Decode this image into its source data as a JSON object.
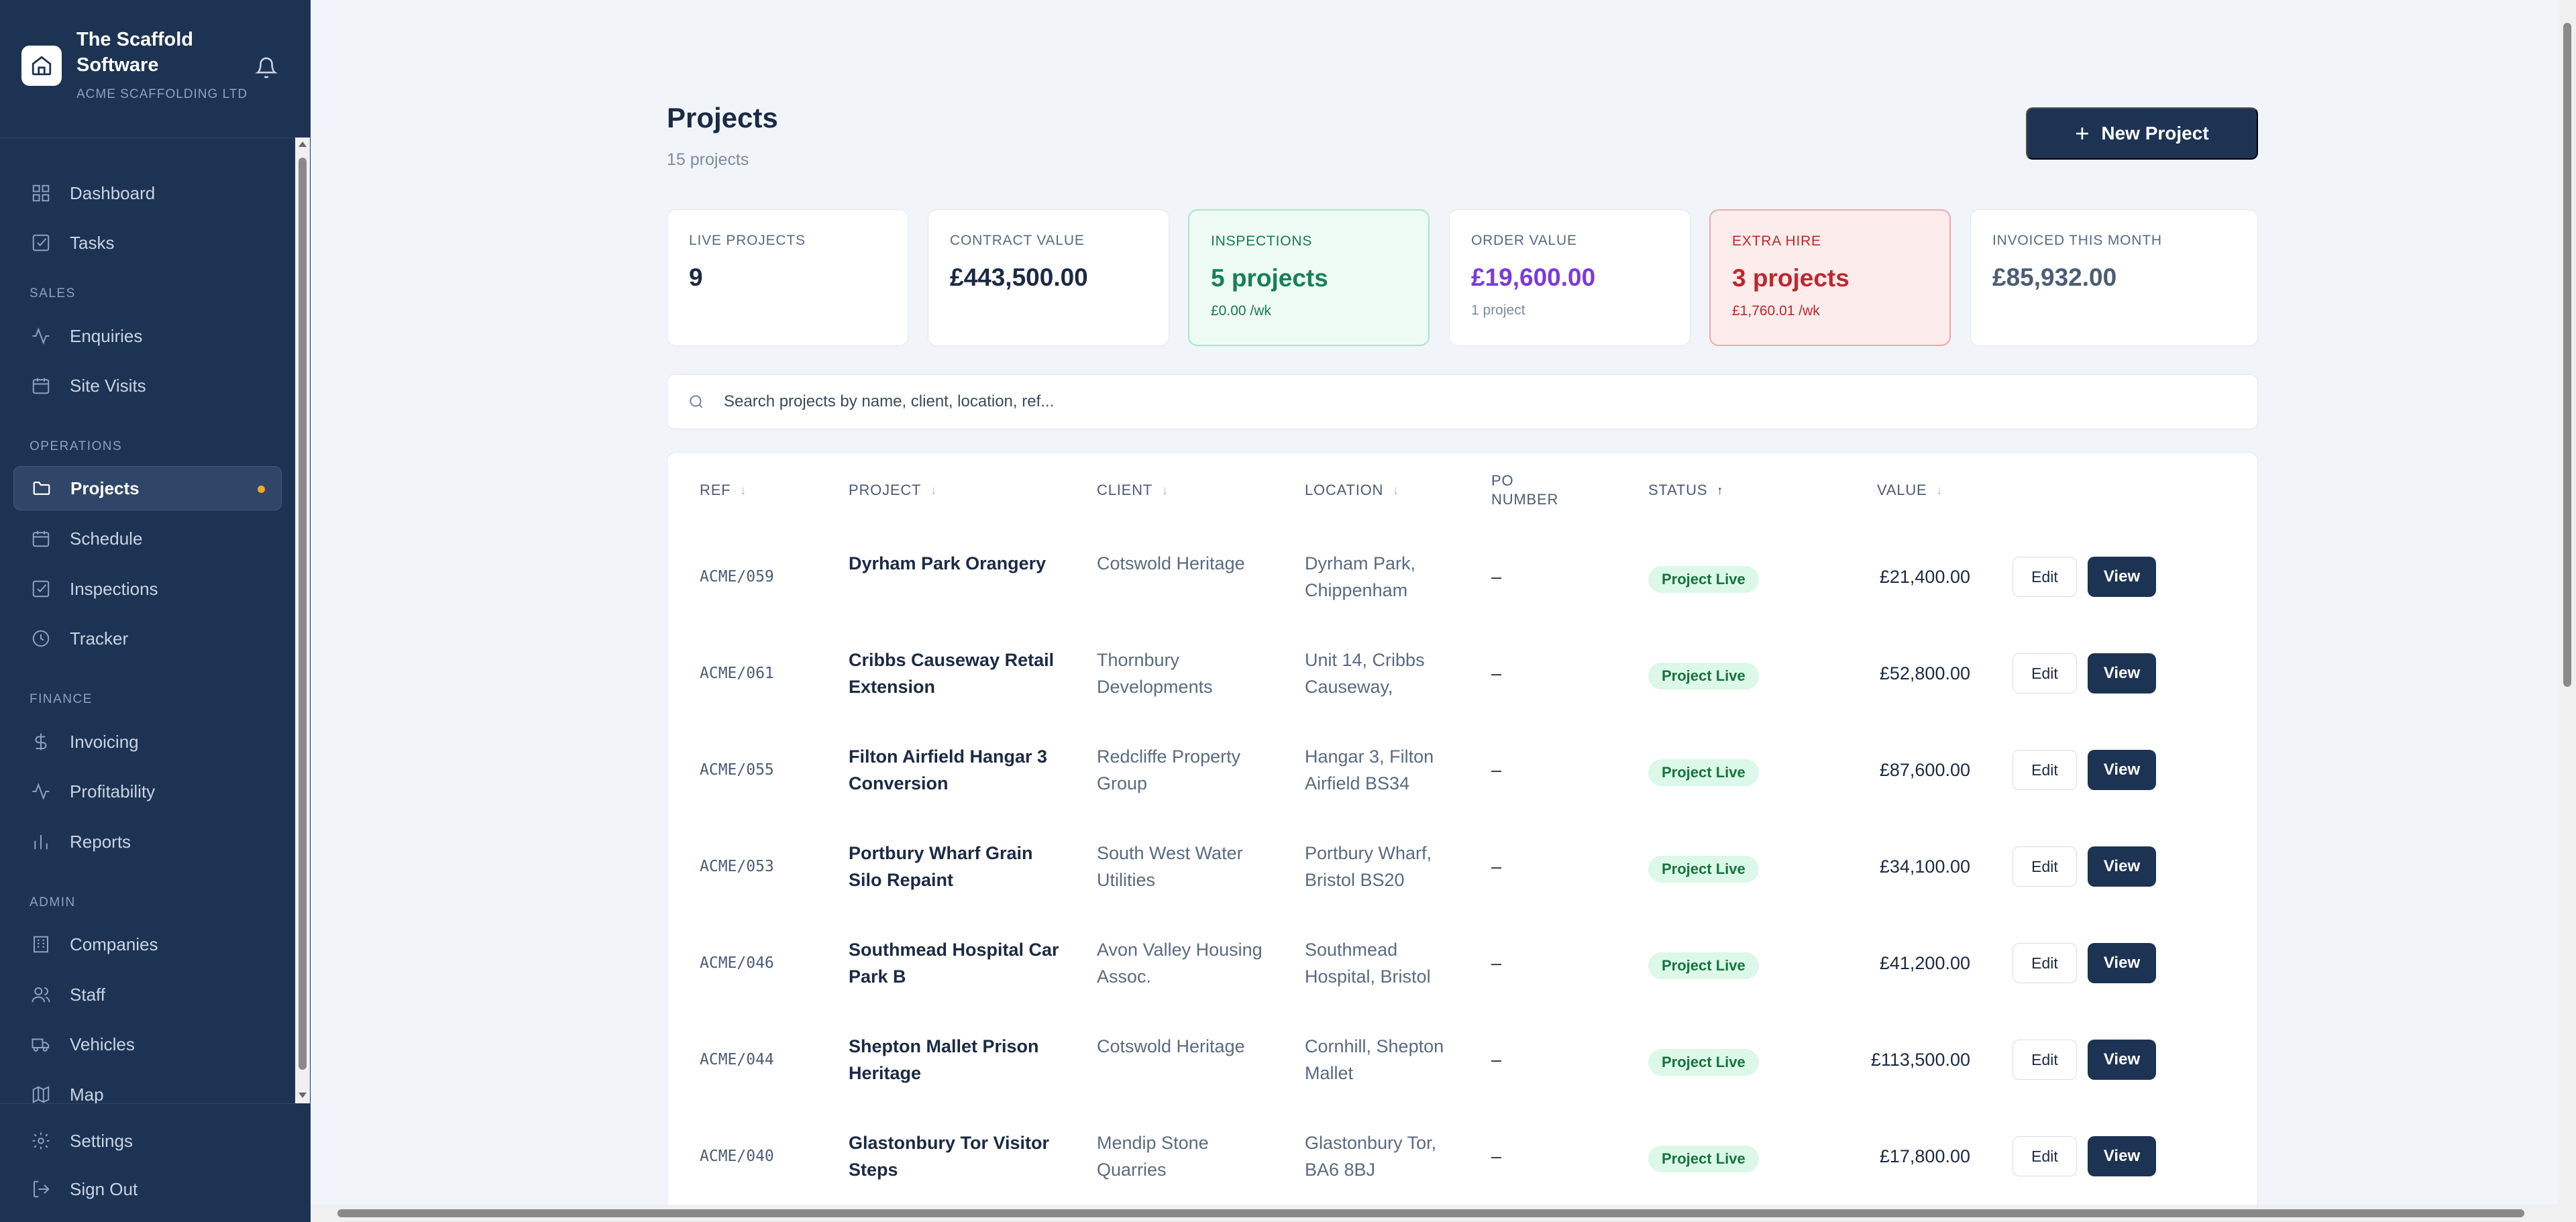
{
  "brand": {
    "name": "The Scaffold Software",
    "company": "ACME SCAFFOLDING LTD"
  },
  "sidebar": {
    "top": [
      {
        "label": "Dashboard",
        "icon": "grid-icon"
      },
      {
        "label": "Tasks",
        "icon": "checkbox-icon"
      }
    ],
    "sections": {
      "sales": "SALES",
      "operations": "OPERATIONS",
      "finance": "FINANCE",
      "admin": "ADMIN"
    },
    "sales": [
      {
        "label": "Enquiries",
        "icon": "activity-icon"
      },
      {
        "label": "Site Visits",
        "icon": "calendar-icon"
      }
    ],
    "operations": [
      {
        "label": "Projects",
        "icon": "folder-icon",
        "active": true
      },
      {
        "label": "Schedule",
        "icon": "calendar-icon"
      },
      {
        "label": "Inspections",
        "icon": "checkbox-icon"
      },
      {
        "label": "Tracker",
        "icon": "clock-icon"
      }
    ],
    "finance": [
      {
        "label": "Invoicing",
        "icon": "dollar-icon"
      },
      {
        "label": "Profitability",
        "icon": "activity-icon"
      },
      {
        "label": "Reports",
        "icon": "bar-chart-icon"
      }
    ],
    "admin": [
      {
        "label": "Companies",
        "icon": "building-icon"
      },
      {
        "label": "Staff",
        "icon": "users-icon"
      },
      {
        "label": "Vehicles",
        "icon": "truck-icon"
      },
      {
        "label": "Map",
        "icon": "map-icon"
      }
    ],
    "footer": [
      {
        "label": "Settings",
        "icon": "gear-icon"
      },
      {
        "label": "Sign Out",
        "icon": "logout-icon"
      }
    ]
  },
  "header": {
    "title": "Projects",
    "subtitle": "15 projects",
    "new_button": "New Project"
  },
  "stats": [
    {
      "label": "LIVE PROJECTS",
      "value": "9",
      "sub": ""
    },
    {
      "label": "CONTRACT VALUE",
      "value": "£443,500.00",
      "sub": ""
    },
    {
      "label": "INSPECTIONS",
      "value": "5 projects",
      "sub": "£0.00 /wk"
    },
    {
      "label": "ORDER VALUE",
      "value": "£19,600.00",
      "sub": "1 project"
    },
    {
      "label": "EXTRA HIRE",
      "value": "3 projects",
      "sub": "£1,760.01 /wk"
    },
    {
      "label": "INVOICED THIS MONTH",
      "value": "£85,932.00",
      "sub": ""
    }
  ],
  "search": {
    "placeholder": "Search projects by name, client, location, ref..."
  },
  "table": {
    "headers": {
      "ref": "REF",
      "project": "PROJECT",
      "client": "CLIENT",
      "location": "LOCATION",
      "po": "PO NUMBER",
      "status": "STATUS",
      "value": "VALUE"
    },
    "edit_label": "Edit",
    "view_label": "View",
    "rows": [
      {
        "ref": "ACME/059",
        "project": "Dyrham Park Orangery",
        "client": "Cotswold Heritage",
        "location": "Dyrham Park, Chippenham",
        "po": "–",
        "status": "Project Live",
        "value": "£21,400.00"
      },
      {
        "ref": "ACME/061",
        "project": "Cribbs Causeway Retail Extension",
        "client": "Thornbury Developments",
        "location": "Unit 14, Cribbs Causeway,",
        "po": "–",
        "status": "Project Live",
        "value": "£52,800.00"
      },
      {
        "ref": "ACME/055",
        "project": "Filton Airfield Hangar 3 Conversion",
        "client": "Redcliffe Property Group",
        "location": "Hangar 3, Filton Airfield BS34",
        "po": "–",
        "status": "Project Live",
        "value": "£87,600.00"
      },
      {
        "ref": "ACME/053",
        "project": "Portbury Wharf Grain Silo Repaint",
        "client": "South West Water Utilities",
        "location": "Portbury Wharf, Bristol BS20",
        "po": "–",
        "status": "Project Live",
        "value": "£34,100.00"
      },
      {
        "ref": "ACME/046",
        "project": "Southmead Hospital Car Park B",
        "client": "Avon Valley Housing Assoc.",
        "location": "Southmead Hospital, Bristol",
        "po": "–",
        "status": "Project Live",
        "value": "£41,200.00"
      },
      {
        "ref": "ACME/044",
        "project": "Shepton Mallet Prison Heritage",
        "client": "Cotswold Heritage",
        "location": "Cornhill, Shepton Mallet",
        "po": "–",
        "status": "Project Live",
        "value": "£113,500.00"
      },
      {
        "ref": "ACME/040",
        "project": "Glastonbury Tor Visitor Steps",
        "client": "Mendip Stone Quarries",
        "location": "Glastonbury Tor, BA6 8BJ",
        "po": "–",
        "status": "Project Live",
        "value": "£17,800.00"
      }
    ]
  }
}
